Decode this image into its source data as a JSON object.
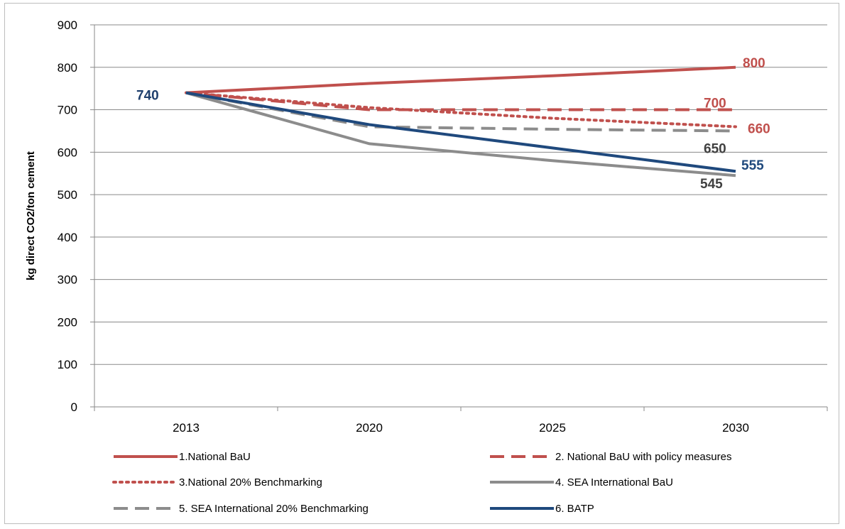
{
  "chart_data": {
    "type": "line",
    "ylabel": "kg direct CO2/ton cement",
    "xlabel": "",
    "categories": [
      "2013",
      "2020",
      "2025",
      "2030"
    ],
    "ylim": [
      0,
      900
    ],
    "yticks": [
      0,
      100,
      200,
      300,
      400,
      500,
      600,
      700,
      800,
      900
    ],
    "grid": "horizontal",
    "legend_position": "bottom",
    "series": [
      {
        "name": "1.National BaU",
        "values": [
          740,
          762,
          780,
          800
        ],
        "color": "#c0504d",
        "style": "solid"
      },
      {
        "name": "2. National BaU with policy measures",
        "values": [
          740,
          700,
          700,
          700
        ],
        "color": "#c0504d",
        "style": "dashed"
      },
      {
        "name": "3.National 20% Benchmarking",
        "values": [
          740,
          705,
          680,
          660
        ],
        "color": "#c0504d",
        "style": "dotted"
      },
      {
        "name": "4. SEA International BaU",
        "values": [
          740,
          620,
          580,
          545
        ],
        "color": "#8c8c8c",
        "style": "solid"
      },
      {
        "name": "5. SEA International 20% Benchmarking",
        "values": [
          740,
          660,
          654,
          650
        ],
        "color": "#8c8c8c",
        "style": "dashed"
      },
      {
        "name": "6. BATP",
        "values": [
          740,
          665,
          610,
          555
        ],
        "color": "#1f497d",
        "style": "solid"
      }
    ],
    "data_labels": [
      {
        "text": "740",
        "x": "2013",
        "y": 740,
        "color": "#1f3f6d"
      },
      {
        "text": "800",
        "x": "2030",
        "y": 800,
        "color": "#c0504d"
      },
      {
        "text": "700",
        "x": "2030",
        "y": 700,
        "color": "#c0504d"
      },
      {
        "text": "660",
        "x": "2030",
        "y": 660,
        "color": "#c0504d"
      },
      {
        "text": "650",
        "x": "2030",
        "y": 650,
        "color": "#404040"
      },
      {
        "text": "555",
        "x": "2030",
        "y": 555,
        "color": "#1f497d"
      },
      {
        "text": "545",
        "x": "2030",
        "y": 545,
        "color": "#404040"
      }
    ]
  }
}
